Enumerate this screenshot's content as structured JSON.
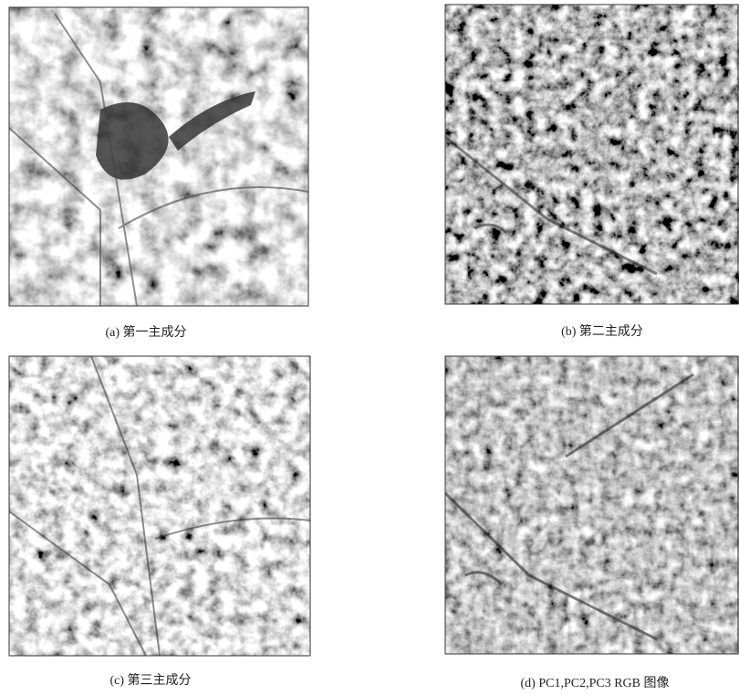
{
  "figure": {
    "panels": [
      {
        "caption": "(a) 第一主成分"
      },
      {
        "caption": "(b) 第二主成分"
      },
      {
        "caption": "(c) 第三主成分"
      },
      {
        "caption": "(d) PC1,PC2,PC3 RGB 图像"
      }
    ]
  }
}
